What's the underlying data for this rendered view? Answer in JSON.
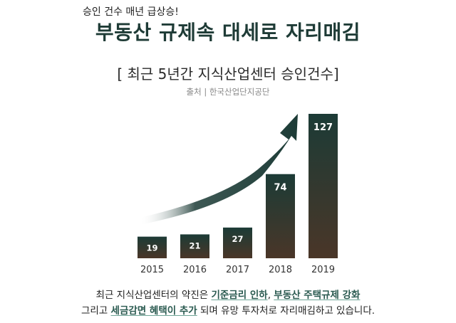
{
  "header": {
    "kicker": "승인 건수 매년 급상승!",
    "headline": "부동산 규제속 대세로 자리매김"
  },
  "chart_title": "[ 최근 5년간 지식산업센터 승인건수]",
  "source": "출처 | 한국산업단지공단",
  "chart_data": {
    "type": "bar",
    "title": "[ 최근 5년간 지식산업센터 승인건수]",
    "categories": [
      "2015",
      "2016",
      "2017",
      "2018",
      "2019"
    ],
    "values": [
      19,
      21,
      27,
      74,
      127
    ],
    "data_labels": [
      "19",
      "21",
      "27",
      "74",
      "127"
    ],
    "xlabel": "",
    "ylabel": "",
    "grid": false,
    "legend": "none",
    "annotations": [
      "rising-trend-arrow"
    ]
  },
  "colors": {
    "bar_top": "#1c3b36",
    "bar_bottom": "#4a3628",
    "arrow": "#1c3b36",
    "headline": "#1e3b36",
    "highlight": "#2a5a50"
  },
  "footer": {
    "line1_a": "최근 지식산업센터의 약진은 ",
    "line1_hl1": "기준금리 인하",
    "line1_b": ", ",
    "line1_hl2": "부동산 주택규제 강화",
    "line2_a": "그리고 ",
    "line2_hl": "세금감면 혜택이 추가",
    "line2_b": " 되며 유망 투자처로 자리매김하고 있습니다."
  }
}
